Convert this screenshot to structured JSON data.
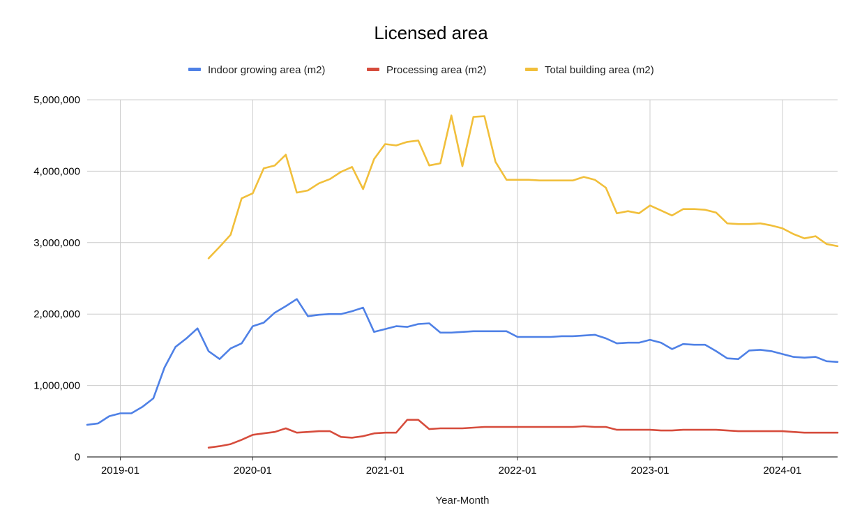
{
  "chart_data": {
    "type": "line",
    "title": "Licensed area",
    "xlabel": "Year-Month",
    "ylabel": "",
    "ylim": [
      0,
      5000000
    ],
    "yticks": [
      "0",
      "1,000,000",
      "2,000,000",
      "3,000,000",
      "4,000,000",
      "5,000,000"
    ],
    "xtick_labels": [
      "2019-01",
      "2020-01",
      "2021-01",
      "2022-01",
      "2023-01",
      "2024-01"
    ],
    "grid": true,
    "legend_position": "top",
    "x": [
      "2018-10",
      "2018-11",
      "2018-12",
      "2019-01",
      "2019-02",
      "2019-03",
      "2019-04",
      "2019-05",
      "2019-06",
      "2019-07",
      "2019-08",
      "2019-09",
      "2019-10",
      "2019-11",
      "2019-12",
      "2020-01",
      "2020-02",
      "2020-03",
      "2020-04",
      "2020-05",
      "2020-06",
      "2020-07",
      "2020-08",
      "2020-09",
      "2020-10",
      "2020-11",
      "2020-12",
      "2021-01",
      "2021-02",
      "2021-03",
      "2021-04",
      "2021-05",
      "2021-06",
      "2021-07",
      "2021-08",
      "2021-09",
      "2021-10",
      "2021-11",
      "2021-12",
      "2022-01",
      "2022-02",
      "2022-03",
      "2022-04",
      "2022-05",
      "2022-06",
      "2022-07",
      "2022-08",
      "2022-09",
      "2022-10",
      "2022-11",
      "2022-12",
      "2023-01",
      "2023-02",
      "2023-03",
      "2023-04",
      "2023-05",
      "2023-06",
      "2023-07",
      "2023-08",
      "2023-09",
      "2023-10",
      "2023-11",
      "2023-12",
      "2024-01",
      "2024-02",
      "2024-03",
      "2024-04",
      "2024-05",
      "2024-06"
    ],
    "series": [
      {
        "name": "Indoor growing area (m2)",
        "color": "#4f81e6",
        "values": [
          450000,
          470000,
          570000,
          610000,
          610000,
          700000,
          820000,
          1250000,
          1540000,
          1660000,
          1800000,
          1480000,
          1370000,
          1520000,
          1590000,
          1830000,
          1880000,
          2020000,
          2110000,
          2210000,
          1970000,
          1990000,
          2000000,
          2000000,
          2040000,
          2090000,
          1750000,
          1790000,
          1830000,
          1820000,
          1860000,
          1870000,
          1740000,
          1740000,
          1750000,
          1760000,
          1760000,
          1760000,
          1760000,
          1680000,
          1680000,
          1680000,
          1680000,
          1690000,
          1690000,
          1700000,
          1710000,
          1660000,
          1590000,
          1600000,
          1600000,
          1640000,
          1600000,
          1510000,
          1580000,
          1570000,
          1570000,
          1480000,
          1380000,
          1370000,
          1490000,
          1500000,
          1480000,
          1440000,
          1400000,
          1390000,
          1400000,
          1340000,
          1330000
        ]
      },
      {
        "name": "Processing area (m2)",
        "color": "#d64c3c",
        "values": [
          null,
          null,
          null,
          null,
          null,
          null,
          null,
          null,
          null,
          null,
          null,
          130000,
          150000,
          180000,
          240000,
          310000,
          330000,
          350000,
          400000,
          340000,
          350000,
          360000,
          360000,
          280000,
          270000,
          290000,
          330000,
          340000,
          340000,
          520000,
          520000,
          390000,
          400000,
          400000,
          400000,
          410000,
          420000,
          420000,
          420000,
          420000,
          420000,
          420000,
          420000,
          420000,
          420000,
          430000,
          420000,
          420000,
          380000,
          380000,
          380000,
          380000,
          370000,
          370000,
          380000,
          380000,
          380000,
          380000,
          370000,
          360000,
          360000,
          360000,
          360000,
          360000,
          350000,
          340000,
          340000,
          340000,
          340000
        ]
      },
      {
        "name": "Total building area (m2)",
        "color": "#f1bf3b",
        "values": [
          null,
          null,
          null,
          null,
          null,
          null,
          null,
          null,
          null,
          null,
          null,
          2780000,
          2940000,
          3110000,
          3620000,
          3690000,
          4040000,
          4080000,
          4230000,
          3700000,
          3730000,
          3830000,
          3890000,
          3990000,
          4060000,
          3750000,
          4170000,
          4380000,
          4360000,
          4410000,
          4430000,
          4080000,
          4110000,
          4780000,
          4070000,
          4760000,
          4770000,
          4130000,
          3880000,
          3880000,
          3880000,
          3870000,
          3870000,
          3870000,
          3870000,
          3920000,
          3880000,
          3770000,
          3410000,
          3440000,
          3410000,
          3520000,
          3450000,
          3380000,
          3470000,
          3470000,
          3460000,
          3420000,
          3270000,
          3260000,
          3260000,
          3270000,
          3240000,
          3200000,
          3120000,
          3060000,
          3090000,
          2980000,
          2950000
        ]
      }
    ]
  }
}
